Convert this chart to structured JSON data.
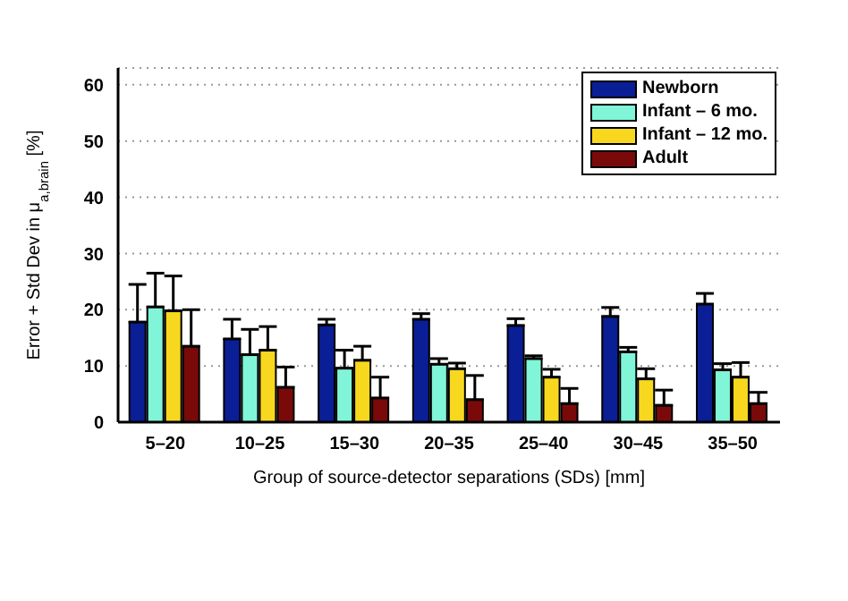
{
  "chart_data": {
    "type": "bar",
    "xlabel": "Group of source-detector separations (SDs) [mm]",
    "ylabel": "Error + Std Dev in μ$_{a,brain}$ [%]",
    "categories": [
      "5–20",
      "10–25",
      "15–30",
      "20–35",
      "25–40",
      "30–45",
      "35–50"
    ],
    "series": [
      {
        "name": "Newborn",
        "color": "#0a1e96",
        "values": [
          17.8,
          14.8,
          17.3,
          18.3,
          17.2,
          18.8,
          21
        ],
        "errors": [
          [
            17.8,
            24.5
          ],
          [
            14.8,
            18.3
          ],
          [
            17.3,
            18.3
          ],
          [
            18.3,
            19.3
          ],
          [
            17.2,
            18.4
          ],
          [
            18.8,
            20.4
          ],
          [
            21,
            22.9
          ]
        ]
      },
      {
        "name": "Infant – 6 mo.",
        "color": "#80f5d8",
        "values": [
          20.5,
          12,
          9.6,
          10.3,
          11.3,
          12.5,
          9.3
        ],
        "errors": [
          [
            20.5,
            26.5
          ],
          [
            12,
            16.5
          ],
          [
            9.6,
            12.8
          ],
          [
            10.3,
            11.3
          ],
          [
            11.3,
            11.8
          ],
          [
            12.5,
            13.3
          ],
          [
            9.3,
            10.4
          ]
        ]
      },
      {
        "name": "Infant – 12 mo.",
        "color": "#f8d81e",
        "values": [
          19.8,
          12.8,
          11,
          9.5,
          8,
          7.7,
          8
        ],
        "errors": [
          [
            19.8,
            26
          ],
          [
            12.8,
            17
          ],
          [
            11,
            13.5
          ],
          [
            9.5,
            10.5
          ],
          [
            8,
            9.4
          ],
          [
            7.7,
            9.5
          ],
          [
            8,
            10.6
          ]
        ]
      },
      {
        "name": "Adult",
        "color": "#7a0a0a",
        "values": [
          13.5,
          6.2,
          4.3,
          4,
          3.3,
          3,
          3.3
        ],
        "errors": [
          [
            13.5,
            20
          ],
          [
            6.2,
            9.8
          ],
          [
            4.3,
            8
          ],
          [
            4,
            8.3
          ],
          [
            3.3,
            6
          ],
          [
            3,
            5.7
          ],
          [
            3.3,
            5.3
          ]
        ]
      }
    ],
    "ylim": [
      0,
      63
    ],
    "yticks": [
      0,
      10,
      20,
      30,
      40,
      50,
      60
    ],
    "grid": "y",
    "legend": "top right"
  }
}
